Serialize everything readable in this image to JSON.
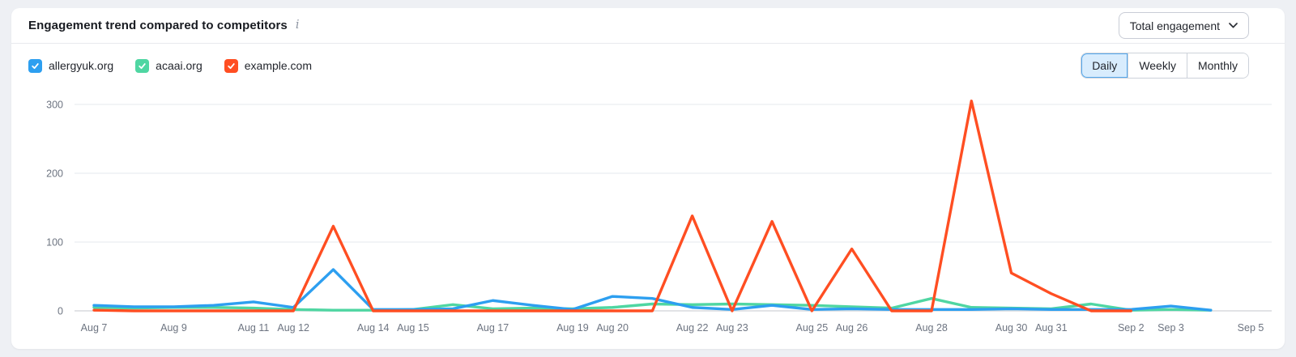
{
  "header": {
    "title": "Engagement trend compared to competitors",
    "info_icon": "i",
    "metric_dropdown": {
      "selected": "Total engagement"
    }
  },
  "legend": [
    {
      "label": "allergyuk.org",
      "color": "#2d9ff0",
      "checked": true
    },
    {
      "label": "acaai.org",
      "color": "#4fd6a2",
      "checked": true
    },
    {
      "label": "example.com",
      "color": "#ff4e22",
      "checked": true
    }
  ],
  "granularity": {
    "options": [
      "Daily",
      "Weekly",
      "Monthly"
    ],
    "selected": "Daily"
  },
  "colors": {
    "accent_blue": "#2d9ff0",
    "selected_segment_bg": "#d8ecfd",
    "selected_segment_border": "#55a8ec",
    "gridline": "#ebedf0",
    "zero_line": "#d8dade",
    "axis_text": "#6d7481"
  },
  "chart_data": {
    "type": "line",
    "title": "Engagement trend compared to competitors",
    "xlabel": "",
    "ylabel": "",
    "yticks": [
      0,
      100,
      200,
      300
    ],
    "ylim": [
      0,
      320
    ],
    "grid": true,
    "legend_position": "top-left",
    "x": [
      "Aug 7",
      "Aug 8",
      "Aug 9",
      "Aug 10",
      "Aug 11",
      "Aug 12",
      "Aug 13",
      "Aug 14",
      "Aug 15",
      "Aug 16",
      "Aug 17",
      "Aug 18",
      "Aug 19",
      "Aug 20",
      "Aug 21",
      "Aug 22",
      "Aug 23",
      "Aug 24",
      "Aug 25",
      "Aug 26",
      "Aug 27",
      "Aug 28",
      "Aug 29",
      "Aug 30",
      "Aug 31",
      "Sep 1",
      "Sep 2",
      "Sep 3",
      "Sep 4",
      "Sep 5"
    ],
    "x_tick_labels": [
      "Aug 7",
      "Aug 9",
      "Aug 11",
      "Aug 12",
      "Aug 14",
      "Aug 15",
      "Aug 17",
      "Aug 19",
      "Aug 20",
      "Aug 22",
      "Aug 23",
      "Aug 25",
      "Aug 26",
      "Aug 28",
      "Aug 30",
      "Aug 31",
      "Sep 2",
      "Sep 3",
      "Sep 5"
    ],
    "series": [
      {
        "name": "acaai.org",
        "color": "#4fd6a2",
        "values": [
          5,
          4,
          5,
          5,
          4,
          2,
          1,
          1,
          2,
          9,
          3,
          4,
          3,
          5,
          10,
          9,
          10,
          9,
          8,
          6,
          4,
          18,
          5,
          4,
          3,
          10,
          1,
          2,
          1,
          null
        ]
      },
      {
        "name": "allergyuk.org",
        "color": "#2d9ff0",
        "values": [
          8,
          6,
          6,
          8,
          13,
          5,
          60,
          2,
          2,
          3,
          15,
          8,
          2,
          21,
          18,
          5,
          2,
          8,
          2,
          3,
          2,
          2,
          2,
          3,
          2,
          2,
          2,
          7,
          1,
          null
        ]
      },
      {
        "name": "example.com",
        "color": "#ff4e22",
        "values": [
          1,
          0,
          0,
          0,
          0,
          0,
          123,
          0,
          0,
          0,
          0,
          0,
          0,
          0,
          0,
          138,
          0,
          130,
          0,
          90,
          0,
          0,
          305,
          55,
          25,
          0,
          0,
          null,
          null,
          null
        ]
      }
    ]
  }
}
